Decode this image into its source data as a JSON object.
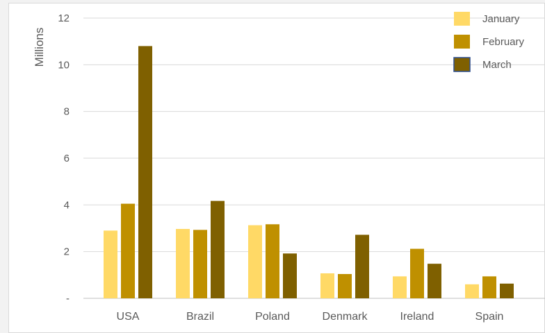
{
  "chart_data": {
    "type": "bar",
    "title": "",
    "xlabel": "",
    "ylabel": "Millions",
    "ylim": [
      0,
      12
    ],
    "yticks": [
      0,
      2,
      4,
      6,
      8,
      10,
      12
    ],
    "ytick_labels": [
      "-",
      "2",
      "4",
      "6",
      "8",
      "10",
      "12"
    ],
    "grid": true,
    "legend_position": "top-right",
    "categories": [
      "USA",
      "Brazil",
      "Poland",
      "Denmark",
      "Ireland",
      "Spain"
    ],
    "series": [
      {
        "name": "January",
        "color": "#FFD966",
        "values": [
          2.9,
          2.97,
          3.13,
          1.07,
          0.94,
          0.6
        ]
      },
      {
        "name": "February",
        "color": "#BF9000",
        "values": [
          4.05,
          2.93,
          3.17,
          1.04,
          2.12,
          0.94
        ]
      },
      {
        "name": "March",
        "color": "#7F6000",
        "values": [
          10.8,
          4.17,
          1.92,
          2.72,
          1.48,
          0.63
        ]
      }
    ]
  }
}
